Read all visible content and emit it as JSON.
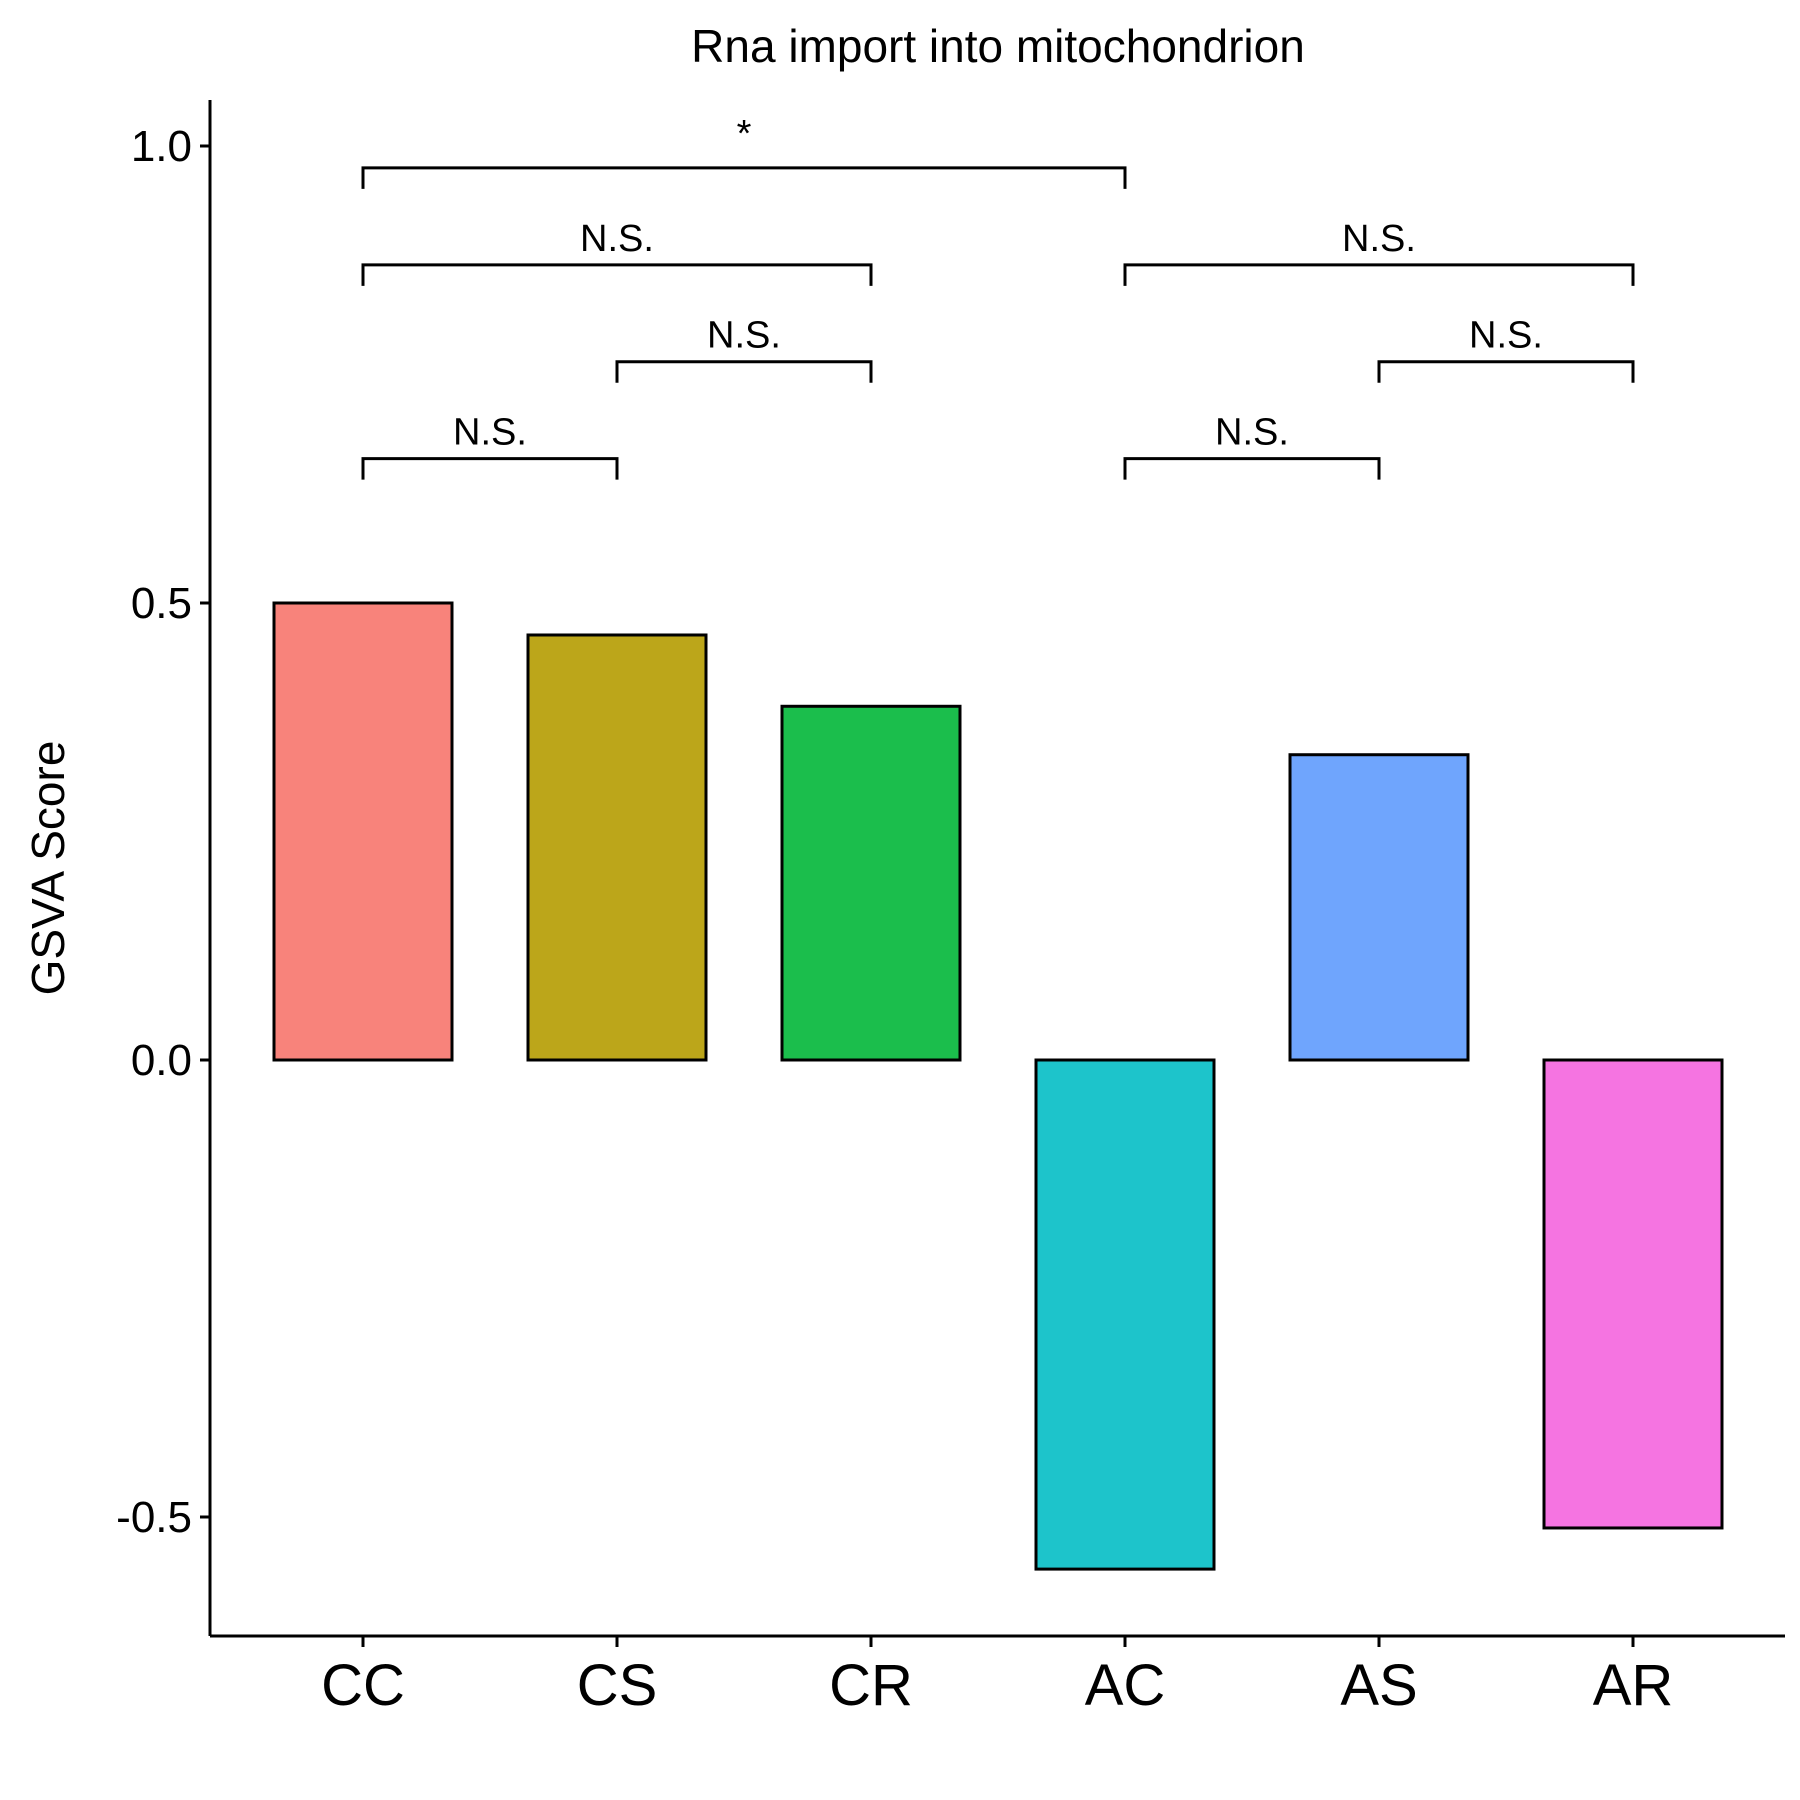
{
  "chart_data": {
    "type": "bar",
    "title": "Rna import into mitochondrion",
    "xlabel": "",
    "ylabel": "GSVA Score",
    "categories": [
      "CC",
      "CS",
      "CR",
      "AC",
      "AS",
      "AR"
    ],
    "values": [
      0.5,
      0.465,
      0.387,
      -0.557,
      0.334,
      -0.512
    ],
    "colors": [
      "#F8837B",
      "#BCA61A",
      "#1BBE4C",
      "#1DC4CB",
      "#6FA5FD",
      "#F574E1"
    ],
    "ylim": [
      -0.63,
      1.05
    ],
    "yticks": [
      -0.5,
      0.0,
      0.5,
      1.0
    ],
    "ytick_labels": [
      "-0.5",
      "0.0",
      "0.5",
      "1.0"
    ],
    "grid": false,
    "legend": "none",
    "significance": [
      {
        "from": "CC",
        "to": "AC",
        "y": 0.976,
        "label": "*"
      },
      {
        "from": "CC",
        "to": "CR",
        "y": 0.87,
        "label": "N.S."
      },
      {
        "from": "AC",
        "to": "AR",
        "y": 0.87,
        "label": "N.S."
      },
      {
        "from": "CS",
        "to": "CR",
        "y": 0.764,
        "label": "N.S."
      },
      {
        "from": "AS",
        "to": "AR",
        "y": 0.764,
        "label": "N.S."
      },
      {
        "from": "CC",
        "to": "CS",
        "y": 0.658,
        "label": "N.S."
      },
      {
        "from": "AC",
        "to": "AS",
        "y": 0.658,
        "label": "N.S."
      }
    ]
  }
}
